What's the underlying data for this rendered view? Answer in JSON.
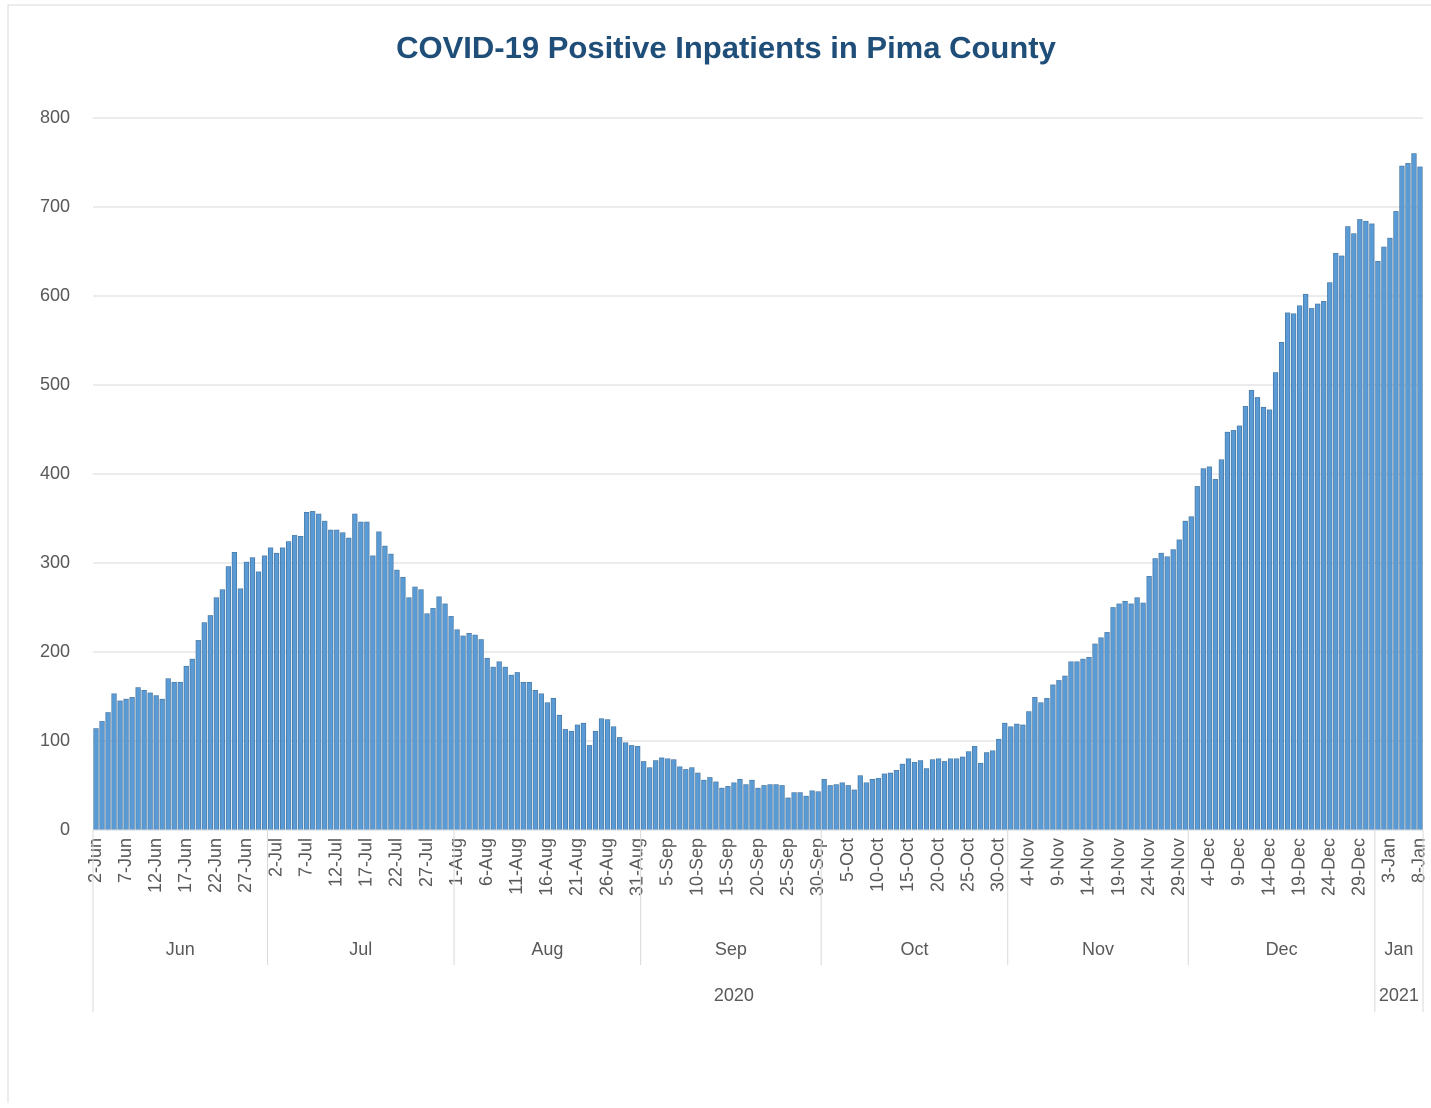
{
  "chart_data": {
    "type": "bar",
    "title": "COVID-19 Positive Inpatients in Pima County",
    "categories": [
      "2-Jun",
      null,
      null,
      null,
      null,
      "7-Jun",
      null,
      null,
      null,
      null,
      "12-Jun",
      null,
      null,
      null,
      null,
      "17-Jun",
      null,
      null,
      null,
      null,
      "22-Jun",
      null,
      null,
      null,
      null,
      "27-Jun",
      null,
      null,
      null,
      null,
      "2-Jul",
      null,
      null,
      null,
      null,
      "7-Jul",
      null,
      null,
      null,
      null,
      "12-Jul",
      null,
      null,
      null,
      null,
      "17-Jul",
      null,
      null,
      null,
      null,
      "22-Jul",
      null,
      null,
      null,
      null,
      "27-Jul",
      null,
      null,
      null,
      null,
      "1-Aug",
      null,
      null,
      null,
      null,
      "6-Aug",
      null,
      null,
      null,
      null,
      "11-Aug",
      null,
      null,
      null,
      null,
      "16-Aug",
      null,
      null,
      null,
      null,
      "21-Aug",
      null,
      null,
      null,
      null,
      "26-Aug",
      null,
      null,
      null,
      null,
      "31-Aug",
      null,
      null,
      null,
      null,
      "5-Sep",
      null,
      null,
      null,
      null,
      "10-Sep",
      null,
      null,
      null,
      null,
      "15-Sep",
      null,
      null,
      null,
      null,
      "20-Sep",
      null,
      null,
      null,
      null,
      "25-Sep",
      null,
      null,
      null,
      null,
      "30-Sep",
      null,
      null,
      null,
      null,
      "5-Oct",
      null,
      null,
      null,
      null,
      "10-Oct",
      null,
      null,
      null,
      null,
      "15-Oct",
      null,
      null,
      null,
      null,
      "20-Oct",
      null,
      null,
      null,
      null,
      "25-Oct",
      null,
      null,
      null,
      null,
      "30-Oct",
      null,
      null,
      null,
      null,
      "4-Nov",
      null,
      null,
      null,
      null,
      "9-Nov",
      null,
      null,
      null,
      null,
      "14-Nov",
      null,
      null,
      null,
      null,
      "19-Nov",
      null,
      null,
      null,
      null,
      "24-Nov",
      null,
      null,
      null,
      null,
      "29-Nov",
      null,
      null,
      null,
      null,
      "4-Dec",
      null,
      null,
      null,
      null,
      "9-Dec",
      null,
      null,
      null,
      null,
      "14-Dec",
      null,
      null,
      null,
      null,
      "19-Dec",
      null,
      null,
      null,
      null,
      "24-Dec",
      null,
      null,
      null,
      null,
      "29-Dec",
      null,
      null,
      null,
      null,
      "3-Jan",
      null,
      null,
      null,
      null,
      "8-Jan"
    ],
    "values": [
      114,
      122,
      132,
      153,
      145,
      147,
      149,
      160,
      157,
      154,
      151,
      147,
      170,
      166,
      166,
      184,
      192,
      213,
      233,
      241,
      261,
      270,
      296,
      312,
      271,
      301,
      306,
      290,
      308,
      317,
      311,
      317,
      324,
      331,
      330,
      357,
      358,
      355,
      347,
      337,
      337,
      334,
      328,
      355,
      346,
      346,
      308,
      335,
      319,
      310,
      292,
      284,
      261,
      273,
      270,
      243,
      249,
      262,
      254,
      240,
      225,
      218,
      221,
      219,
      214,
      193,
      183,
      189,
      183,
      174,
      177,
      166,
      166,
      157,
      153,
      143,
      148,
      129,
      113,
      111,
      118,
      120,
      95,
      111,
      125,
      124,
      116,
      104,
      98,
      95,
      94,
      77,
      70,
      78,
      81,
      80,
      79,
      71,
      68,
      70,
      64,
      56,
      59,
      54,
      47,
      49,
      53,
      57,
      51,
      56,
      47,
      50,
      51,
      51,
      50,
      36,
      42,
      42,
      38,
      44,
      43,
      57,
      50,
      51,
      53,
      50,
      45,
      61,
      53,
      57,
      58,
      63,
      64,
      67,
      74,
      80,
      76,
      78,
      69,
      79,
      80,
      77,
      80,
      80,
      82,
      88,
      94,
      75,
      87,
      89,
      102,
      120,
      116,
      119,
      118,
      133,
      149,
      143,
      148,
      163,
      168,
      173,
      189,
      189,
      192,
      194,
      209,
      216,
      222,
      250,
      254,
      257,
      254,
      261,
      255,
      285,
      305,
      311,
      307,
      315,
      326,
      347,
      352,
      386,
      406,
      408,
      394,
      416,
      447,
      449,
      454,
      476,
      494,
      486,
      475,
      472,
      514,
      548,
      581,
      580,
      589,
      602,
      586,
      591,
      594,
      615,
      648,
      645,
      678,
      670,
      686,
      684,
      681,
      639,
      655,
      665,
      695,
      746,
      749,
      760,
      745
    ],
    "groups": [
      {
        "year": "2020",
        "months": [
          "Jun",
          "Jul",
          "Aug",
          "Sep",
          "Oct",
          "Nov",
          "Dec"
        ]
      },
      {
        "year": "2021",
        "months": [
          "Jan"
        ]
      }
    ],
    "color": "#5b9bd5",
    "ylim": [
      0,
      800
    ],
    "yticks": [
      0,
      100,
      200,
      300,
      400,
      500,
      600,
      700,
      800
    ],
    "grid": true
  }
}
